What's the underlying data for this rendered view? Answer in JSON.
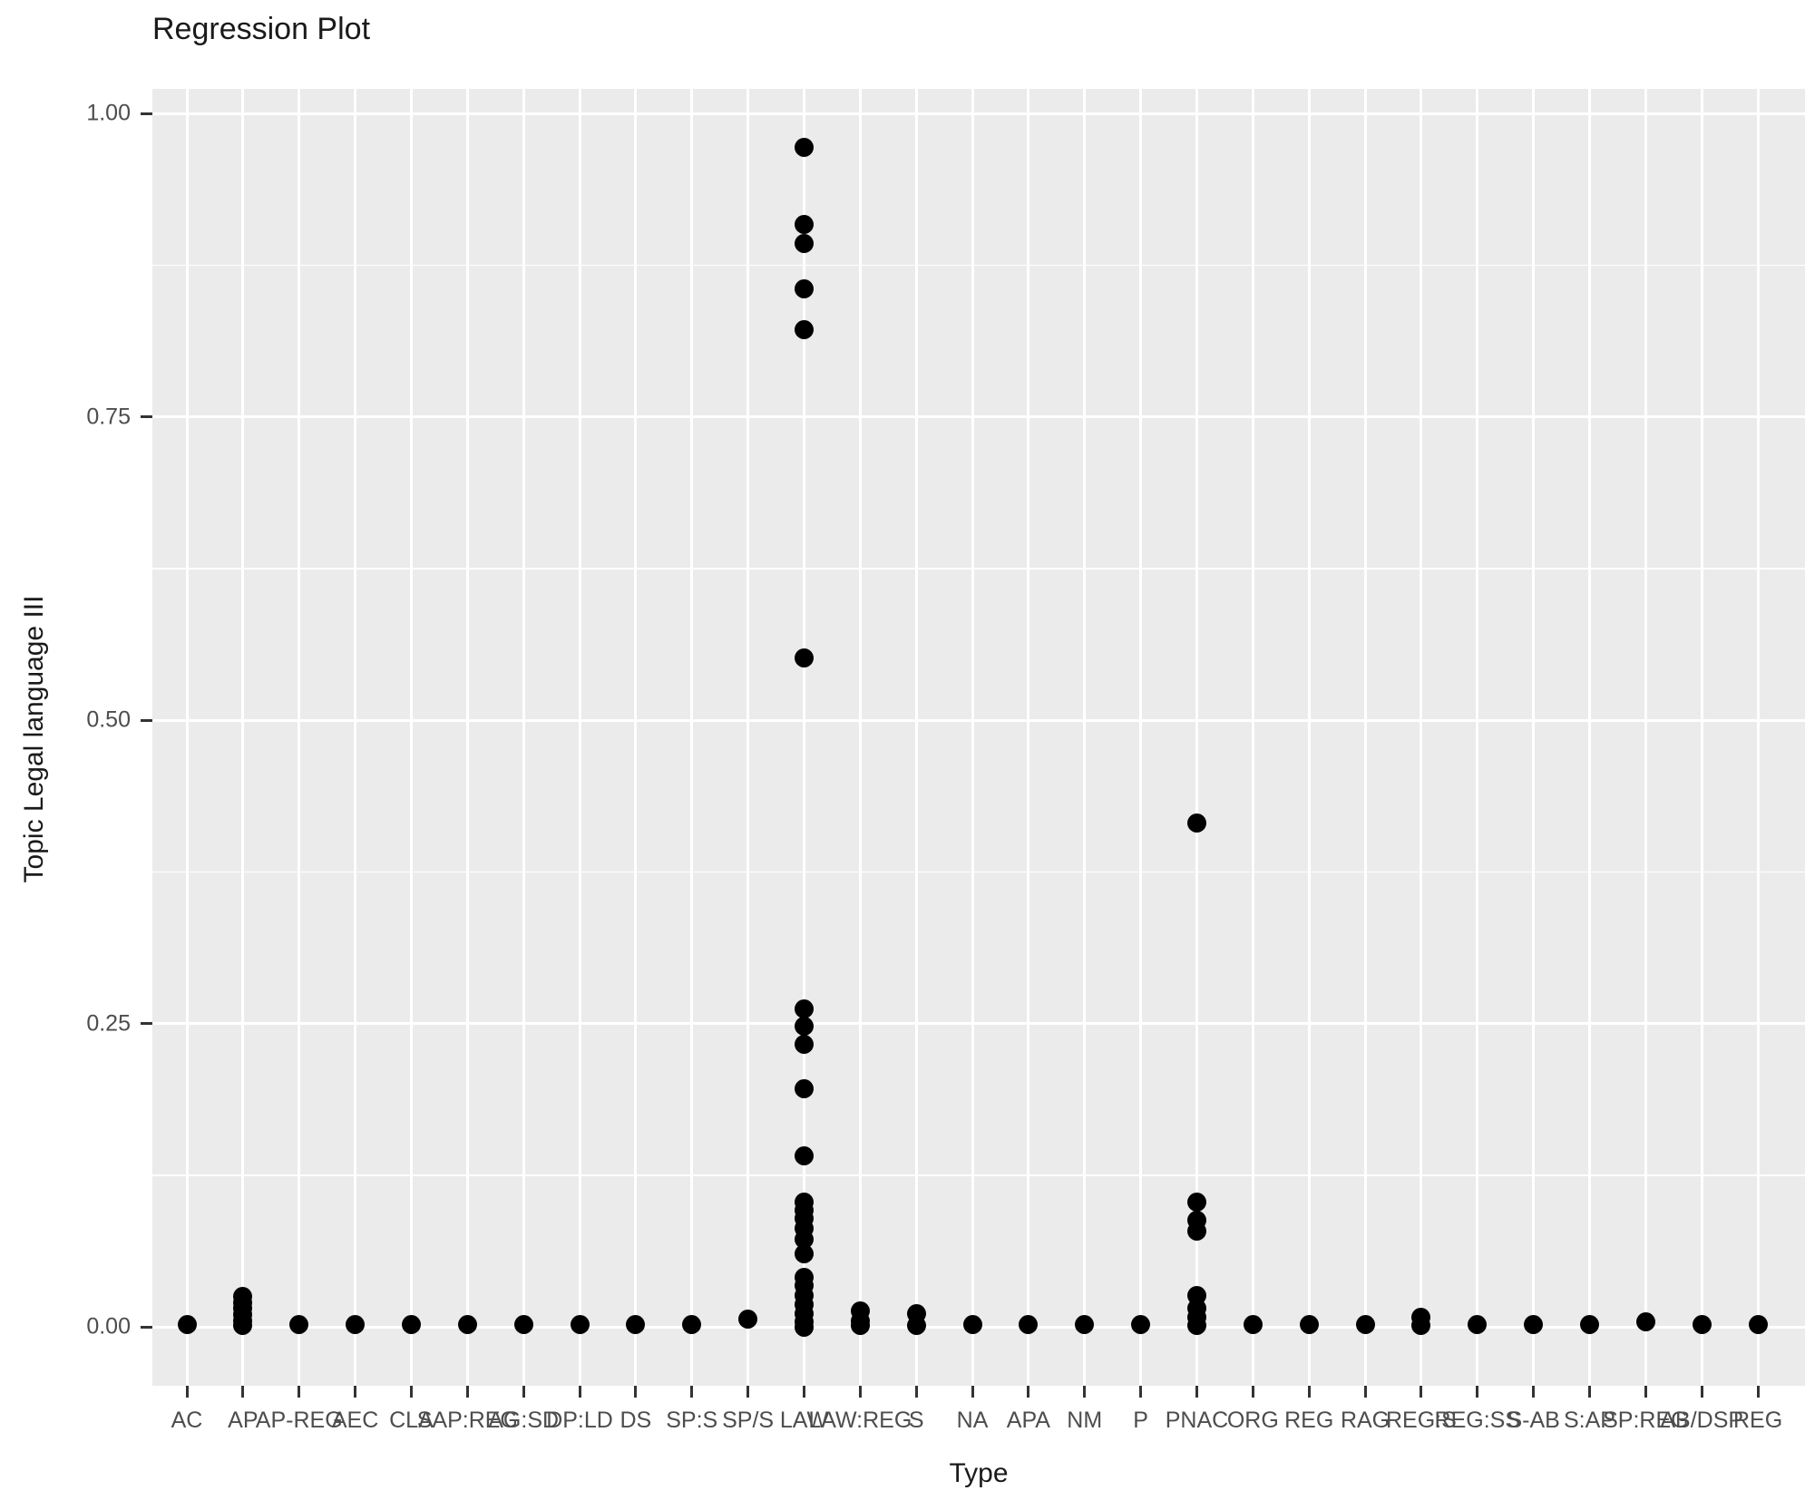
{
  "title": "Regression Plot",
  "x_axis": {
    "label": "Type",
    "categories": [
      "AC",
      "AP",
      "AP-REG",
      "AEC",
      "CLA",
      "SAP:REG",
      "AG:SD",
      "DP:LD",
      "DS",
      "SP:S",
      "SP/S",
      "LAW",
      "LAW:REG",
      "S",
      "NA",
      "APA",
      "NM",
      "P",
      "PNAC",
      "ORG",
      "REG",
      "RAG",
      "REG:S",
      "REG:SS",
      "S-AB",
      "S:AP",
      "SP:REG",
      "AB/DSP",
      "REG"
    ]
  },
  "y_axis": {
    "label": "Topic Legal language III",
    "ticks": [
      "0.00",
      "0.25",
      "0.50",
      "0.75",
      "1.00"
    ],
    "tick_values": [
      0.0,
      0.25,
      0.5,
      0.75,
      1.0
    ],
    "minor_tick_values": [
      0.125,
      0.375,
      0.625,
      0.875
    ]
  },
  "colors": {
    "panel_background": "#ebebeb",
    "gridline": "#ffffff",
    "point": "#000000",
    "tick_mark": "#333333",
    "axis_text": "#4d4d4d",
    "title_text": "#1a1a1a"
  },
  "chart_data": {
    "type": "scatter",
    "title": "Regression Plot",
    "xlabel": "Type",
    "ylabel": "Topic Legal language III",
    "ylim": [
      -0.05,
      1.02
    ],
    "grid": true,
    "legend": false,
    "point_color": "#000000",
    "categories": [
      "AC",
      "AP",
      "AP-REG",
      "AEC",
      "CLA",
      "SAP:REG",
      "AG:SD",
      "DP:LD",
      "DS",
      "SP:S",
      "SP/S",
      "LAW",
      "LAW:REG",
      "S",
      "NA",
      "APA",
      "NM",
      "P",
      "PNAC",
      "ORG",
      "REG",
      "RAG",
      "REG:S",
      "REG:SS",
      "S-AB",
      "S:AP",
      "SP:REG",
      "AB/DSP",
      "REG"
    ],
    "values": [
      [
        0.002
      ],
      [
        0.025,
        0.02,
        0.015,
        0.01,
        0.005,
        0.001
      ],
      [
        0.002
      ],
      [
        0.002
      ],
      [
        0.002
      ],
      [
        0.002
      ],
      [
        0.002
      ],
      [
        0.002
      ],
      [
        0.002
      ],
      [
        0.002
      ],
      [
        0.006
      ],
      [
        0.972,
        0.909,
        0.893,
        0.856,
        0.822,
        0.551,
        0.262,
        0.248,
        0.233,
        0.196,
        0.141,
        0.103,
        0.096,
        0.089,
        0.081,
        0.072,
        0.06,
        0.041,
        0.034,
        0.026,
        0.018,
        0.011,
        0.004,
        0.0
      ],
      [
        0.013,
        0.005,
        0.001
      ],
      [
        0.011,
        0.001
      ],
      [
        0.002
      ],
      [
        0.002
      ],
      [
        0.002
      ],
      [
        0.002
      ],
      [
        0.415,
        0.103,
        0.088,
        0.079,
        0.026,
        0.015,
        0.008,
        0.001
      ],
      [
        0.002
      ],
      [
        0.002
      ],
      [
        0.002
      ],
      [
        0.008,
        0.001
      ],
      [
        0.002
      ],
      [
        0.002
      ],
      [
        0.002
      ],
      [
        0.004
      ],
      [
        0.002
      ],
      [
        0.002
      ]
    ]
  }
}
